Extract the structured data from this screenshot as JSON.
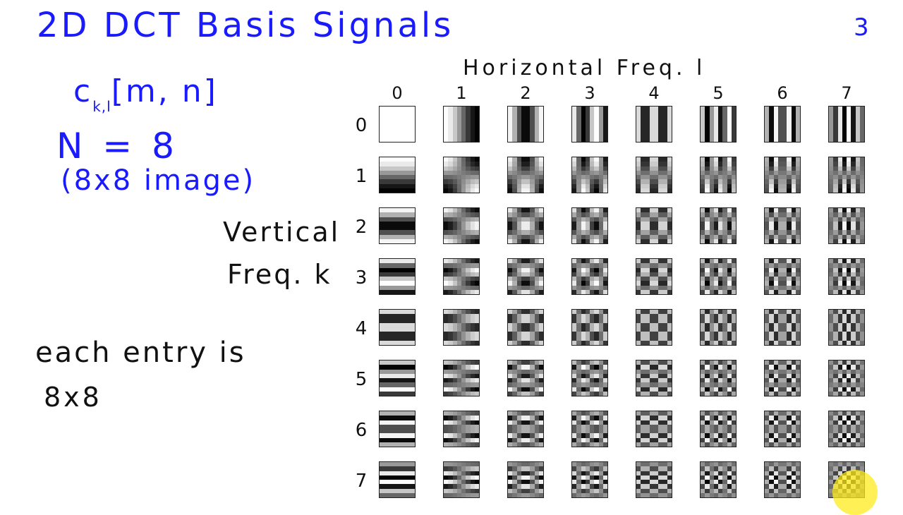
{
  "slide": {
    "title": "2D DCT Basis Signals",
    "page_number": "3"
  },
  "left_notes": {
    "notation_main": "c",
    "notation_sub": "k,l",
    "notation_args": "[m, n]",
    "n_value": "N = 8",
    "image_size": "(8x8 image)",
    "vertical_axis_line_1": "Vertical",
    "vertical_axis_line_2": "Freq. k",
    "note_line_1": "each entry is",
    "note_line_2": "8x8"
  },
  "grid": {
    "horizontal_axis_label": "Horizontal Freq. l",
    "column_labels": [
      "0",
      "1",
      "2",
      "3",
      "4",
      "5",
      "6",
      "7"
    ],
    "row_labels": [
      "0",
      "1",
      "2",
      "3",
      "4",
      "5",
      "6",
      "7"
    ],
    "basis_size": 8
  },
  "colors": {
    "ink_blue": "#1a1aff",
    "ink_black": "#111111",
    "cursor_highlight": "#ffeb1e"
  }
}
